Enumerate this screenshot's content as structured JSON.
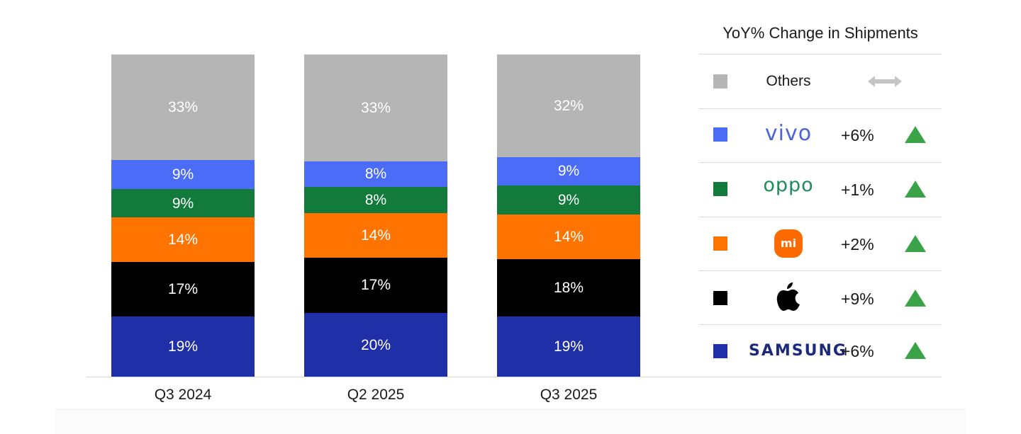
{
  "chart_data": {
    "type": "bar",
    "stacked": true,
    "categories": [
      "Q3 2024",
      "Q2 2025",
      "Q3 2025"
    ],
    "series": [
      {
        "name": "SAMSUNG",
        "color": "#1f2fa8",
        "values": [
          19,
          20,
          19
        ],
        "labels": [
          "19%",
          "20%",
          "19%"
        ]
      },
      {
        "name": "Apple",
        "color": "#000000",
        "values": [
          17,
          17,
          18
        ],
        "labels": [
          "17%",
          "17%",
          "18%"
        ]
      },
      {
        "name": "Xiaomi",
        "color": "#ff7300",
        "values": [
          14,
          14,
          14
        ],
        "labels": [
          "14%",
          "14%",
          "14%"
        ]
      },
      {
        "name": "oppo",
        "color": "#127a3a",
        "values": [
          9,
          8,
          9
        ],
        "labels": [
          "9%",
          "8%",
          "9%"
        ]
      },
      {
        "name": "vivo",
        "color": "#4a6cf7",
        "values": [
          9,
          8,
          9
        ],
        "labels": [
          "9%",
          "8%",
          "9%"
        ]
      },
      {
        "name": "Others",
        "color": "#b5b5b5",
        "values": [
          33,
          33,
          32
        ],
        "labels": [
          "33%",
          "33%",
          "32%"
        ]
      }
    ]
  },
  "legend": {
    "title": "YoY% Change in Shipments",
    "rows": [
      {
        "brand": "Others",
        "swatch": "#b5b5b5",
        "change": "",
        "trend": "flat-arrow-icon"
      },
      {
        "brand": "vivo",
        "swatch": "#4a6cf7",
        "change": "+6%",
        "trend": "triangle-up-icon"
      },
      {
        "brand": "oppo",
        "swatch": "#127a3a",
        "change": "+1%",
        "trend": "triangle-up-icon"
      },
      {
        "brand": "mi",
        "swatch": "#ff7300",
        "change": "+2%",
        "trend": "triangle-up-icon"
      },
      {
        "brand": "Apple",
        "swatch": "#000000",
        "change": "+9%",
        "trend": "triangle-up-icon",
        "logo": "apple-logo-icon"
      },
      {
        "brand": "SAMSUNG",
        "swatch": "#1f2fa8",
        "change": "+6%",
        "trend": "triangle-up-icon"
      }
    ]
  },
  "colors": {
    "trend_up": "#3aa348",
    "flat_arrow": "#c4c4c4"
  }
}
